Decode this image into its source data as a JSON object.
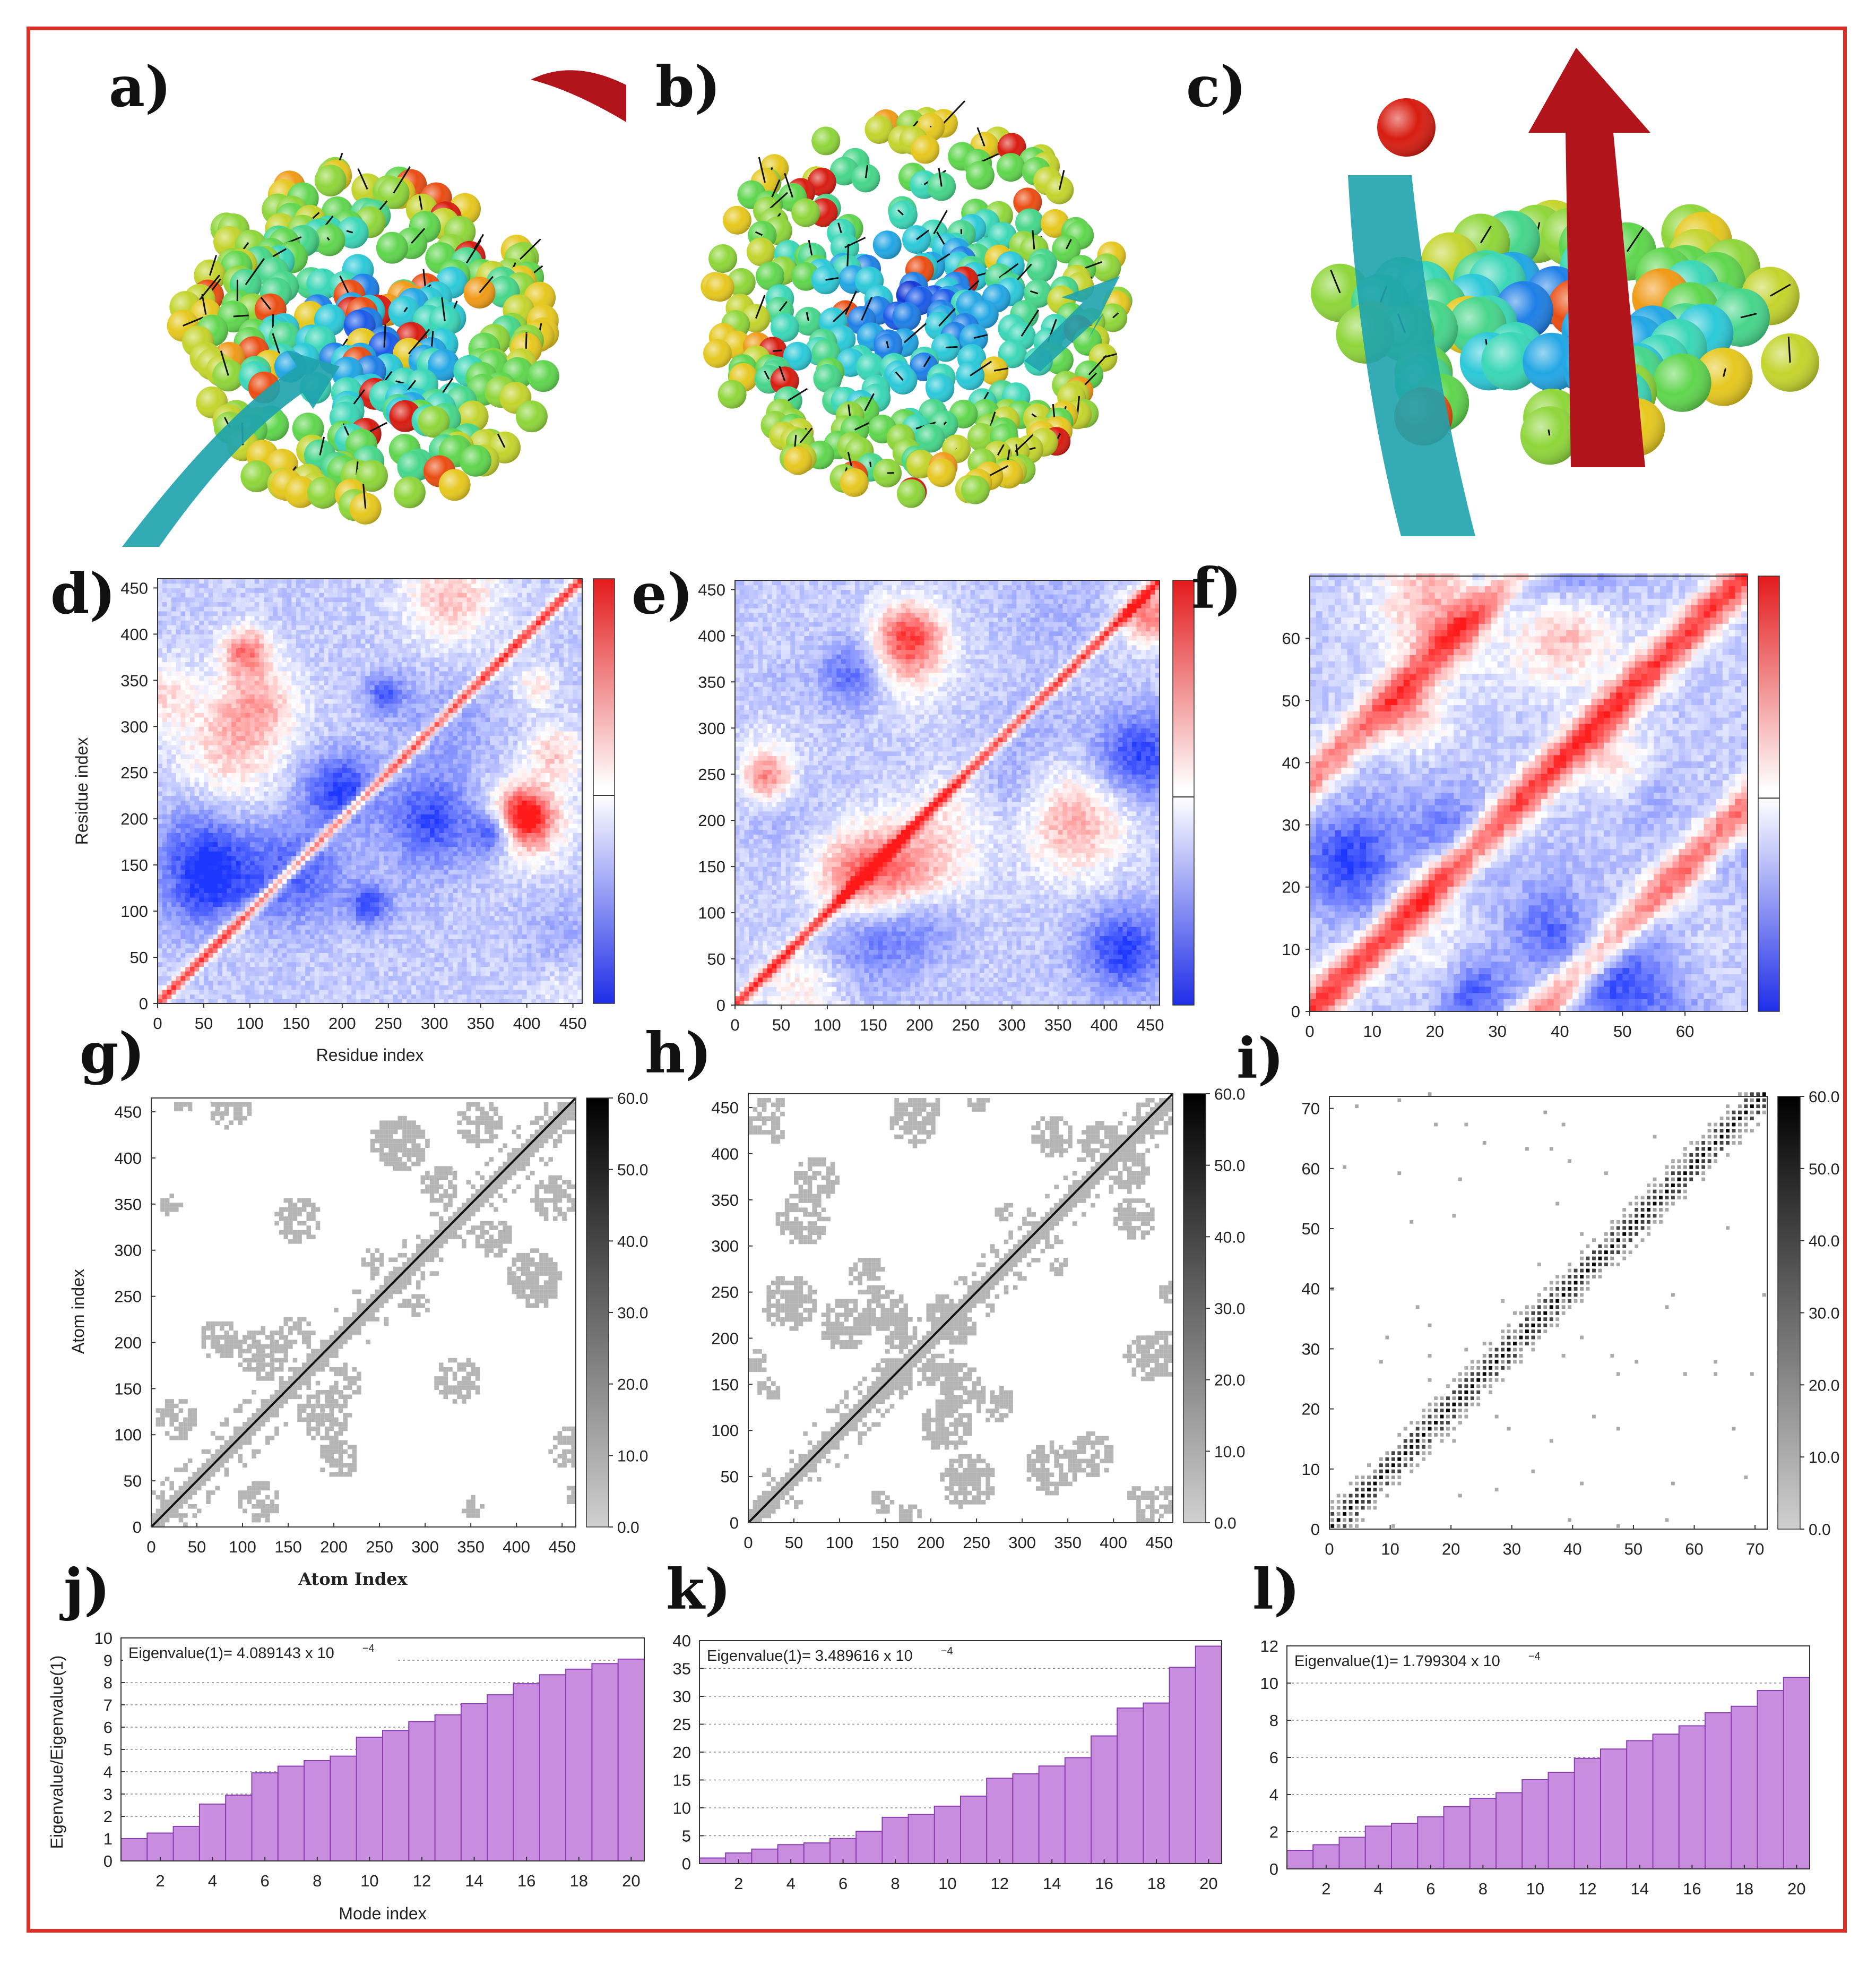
{
  "panel_labels": {
    "a": "a)",
    "b": "b)",
    "c": "c)",
    "d": "d)",
    "e": "e)",
    "f": "f)",
    "g": "g)",
    "h": "h)",
    "i": "i)",
    "j": "j)",
    "k": "k)",
    "l": "l)"
  },
  "colors": {
    "frame": "#d9302a",
    "bar": "#c98de0",
    "bar_edge": "#8a3fb0",
    "arrow_red": "#b2141c",
    "arrow_teal": "#1fa3ad",
    "heat_hi": "#e31a1c",
    "heat_lo": "#1f3de8"
  },
  "heatmap_axis_label": "Residue index",
  "contact_x_label": "Atom Index",
  "contact_y_label": "Atom index",
  "bar_x_label": "Mode index",
  "bar_y_label": "Eigenvalue/Eigenvalue(1)",
  "eig_annot": {
    "j": {
      "text": "Eigenvalue(1)= 4.089143 x 10",
      "exp": "−4"
    },
    "k": {
      "text": "Eigenvalue(1)= 3.489616 x 10",
      "exp": "−4"
    },
    "l": {
      "text": "Eigenvalue(1)= 1.799304 x 10",
      "exp": "−4"
    }
  },
  "chart_data": [
    {
      "panel": "d",
      "type": "heatmap",
      "xlabel": "Residue index",
      "ylabel": "Residue index",
      "xlim": [
        0,
        460
      ],
      "ylim": [
        0,
        460
      ],
      "xticks": [
        0,
        50,
        100,
        150,
        200,
        250,
        300,
        350,
        400,
        450
      ],
      "yticks": [
        0,
        50,
        100,
        150,
        200,
        250,
        300,
        350,
        400,
        450
      ],
      "colormap": [
        "#1f3de8",
        "#ffffff",
        "#e31a1c"
      ]
    },
    {
      "panel": "e",
      "type": "heatmap",
      "xlabel": "",
      "ylabel": "",
      "xlim": [
        0,
        460
      ],
      "ylim": [
        0,
        460
      ],
      "xticks": [
        0,
        50,
        100,
        150,
        200,
        250,
        300,
        350,
        400,
        450
      ],
      "yticks": [
        0,
        50,
        100,
        150,
        200,
        250,
        300,
        350,
        400,
        450
      ],
      "colormap": [
        "#1f3de8",
        "#ffffff",
        "#e31a1c"
      ]
    },
    {
      "panel": "f",
      "type": "heatmap",
      "xlabel": "",
      "ylabel": "",
      "xlim": [
        0,
        70
      ],
      "ylim": [
        0,
        70
      ],
      "xticks": [
        0,
        10,
        20,
        30,
        40,
        50,
        60
      ],
      "yticks": [
        0,
        10,
        20,
        30,
        40,
        50,
        60
      ],
      "colormap": [
        "#1f3de8",
        "#ffffff",
        "#e31a1c"
      ]
    },
    {
      "panel": "g",
      "type": "heatmap",
      "xlabel": "Atom Index",
      "ylabel": "Atom index",
      "xlim": [
        0,
        465
      ],
      "ylim": [
        0,
        465
      ],
      "xticks": [
        0,
        50,
        100,
        150,
        200,
        250,
        300,
        350,
        400,
        450
      ],
      "yticks": [
        0,
        50,
        100,
        150,
        200,
        250,
        300,
        350,
        400,
        450
      ],
      "cbticks": [
        "0.0",
        "10.0",
        "20.0",
        "30.0",
        "40.0",
        "50.0",
        "60.0"
      ]
    },
    {
      "panel": "h",
      "type": "heatmap",
      "xlabel": "",
      "ylabel": "",
      "xlim": [
        0,
        465
      ],
      "ylim": [
        0,
        465
      ],
      "xticks": [
        0,
        50,
        100,
        150,
        200,
        250,
        300,
        350,
        400,
        450
      ],
      "yticks": [
        0,
        50,
        100,
        150,
        200,
        250,
        300,
        350,
        400,
        450
      ],
      "cbticks": [
        "0.0",
        "10.0",
        "20.0",
        "30.0",
        "40.0",
        "50.0",
        "60.0"
      ]
    },
    {
      "panel": "i",
      "type": "heatmap",
      "xlabel": "",
      "ylabel": "",
      "xlim": [
        0,
        72
      ],
      "ylim": [
        0,
        72
      ],
      "xticks": [
        0,
        10,
        20,
        30,
        40,
        50,
        60,
        70
      ],
      "yticks": [
        0,
        10,
        20,
        30,
        40,
        50,
        60,
        70
      ],
      "cbticks": [
        "0.0",
        "10.0",
        "20.0",
        "30.0",
        "40.0",
        "50.0",
        "60.0"
      ]
    },
    {
      "panel": "j",
      "type": "bar",
      "xlabel": "Mode index",
      "ylabel": "Eigenvalue/Eigenvalue(1)",
      "ylim": [
        0,
        10
      ],
      "yticks": [
        0,
        1,
        2,
        3,
        4,
        5,
        6,
        7,
        8,
        9,
        10
      ],
      "xticks": [
        2,
        4,
        6,
        8,
        10,
        12,
        14,
        16,
        18,
        20
      ],
      "categories": [
        1,
        2,
        3,
        4,
        5,
        6,
        7,
        8,
        9,
        10,
        11,
        12,
        13,
        14,
        15,
        16,
        17,
        18,
        19,
        20
      ],
      "values": [
        1.0,
        1.25,
        1.55,
        2.55,
        2.95,
        3.95,
        4.25,
        4.5,
        4.7,
        5.55,
        5.85,
        6.25,
        6.55,
        7.05,
        7.45,
        7.95,
        8.35,
        8.6,
        8.85,
        9.05
      ],
      "annotation": "Eigenvalue(1)= 4.089143 x 10−4"
    },
    {
      "panel": "k",
      "type": "bar",
      "xlabel": "",
      "ylabel": "",
      "ylim": [
        0,
        40
      ],
      "yticks": [
        0,
        5,
        10,
        15,
        20,
        25,
        30,
        35,
        40
      ],
      "xticks": [
        2,
        4,
        6,
        8,
        10,
        12,
        14,
        16,
        18,
        20
      ],
      "categories": [
        1,
        2,
        3,
        4,
        5,
        6,
        7,
        8,
        9,
        10,
        11,
        12,
        13,
        14,
        15,
        16,
        17,
        18,
        19,
        20
      ],
      "values": [
        1.0,
        1.9,
        2.6,
        3.4,
        3.7,
        4.5,
        5.8,
        8.3,
        8.8,
        10.3,
        12.1,
        15.3,
        16.1,
        17.5,
        19.0,
        22.9,
        27.9,
        28.8,
        35.2,
        39.0
      ],
      "annotation": "Eigenvalue(1)= 3.489616 x 10−4"
    },
    {
      "panel": "l",
      "type": "bar",
      "xlabel": "",
      "ylabel": "",
      "ylim": [
        0,
        12
      ],
      "yticks": [
        0,
        2,
        4,
        6,
        8,
        10,
        12
      ],
      "xticks": [
        2,
        4,
        6,
        8,
        10,
        12,
        14,
        16,
        18,
        20
      ],
      "categories": [
        1,
        2,
        3,
        4,
        5,
        6,
        7,
        8,
        9,
        10,
        11,
        12,
        13,
        14,
        15,
        16,
        17,
        18,
        19,
        20
      ],
      "values": [
        1.0,
        1.3,
        1.7,
        2.3,
        2.45,
        2.8,
        3.35,
        3.8,
        4.1,
        4.8,
        5.2,
        5.95,
        6.45,
        6.9,
        7.25,
        7.7,
        8.4,
        8.75,
        9.6,
        10.3
      ],
      "annotation": "Eigenvalue(1)= 1.799304 x 10−4"
    }
  ]
}
